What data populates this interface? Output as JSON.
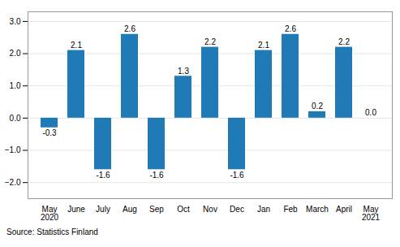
{
  "chart_data": {
    "type": "bar",
    "categories": [
      "May\n2020",
      "June",
      "July",
      "Aug",
      "Sep",
      "Oct",
      "Nov",
      "Dec",
      "Jan",
      "Feb",
      "March",
      "April",
      "May\n2021"
    ],
    "values": [
      -0.3,
      2.1,
      -1.6,
      2.6,
      -1.6,
      1.3,
      2.2,
      -1.6,
      2.1,
      2.6,
      0.2,
      2.2,
      0.0
    ],
    "value_labels": [
      "-0.3",
      "2.1",
      "-1.6",
      "2.6",
      "-1.6",
      "1.3",
      "2.2",
      "-1.6",
      "2.1",
      "2.6",
      "0.2",
      "2.2",
      "0.0"
    ],
    "data_labels": true,
    "color": "#1f7ab5",
    "ylim": [
      -2.5,
      3.3
    ],
    "yticks": [
      -2,
      -1,
      0,
      1,
      2,
      3
    ],
    "grid": true,
    "caption": "Source: Statistics Finland"
  }
}
